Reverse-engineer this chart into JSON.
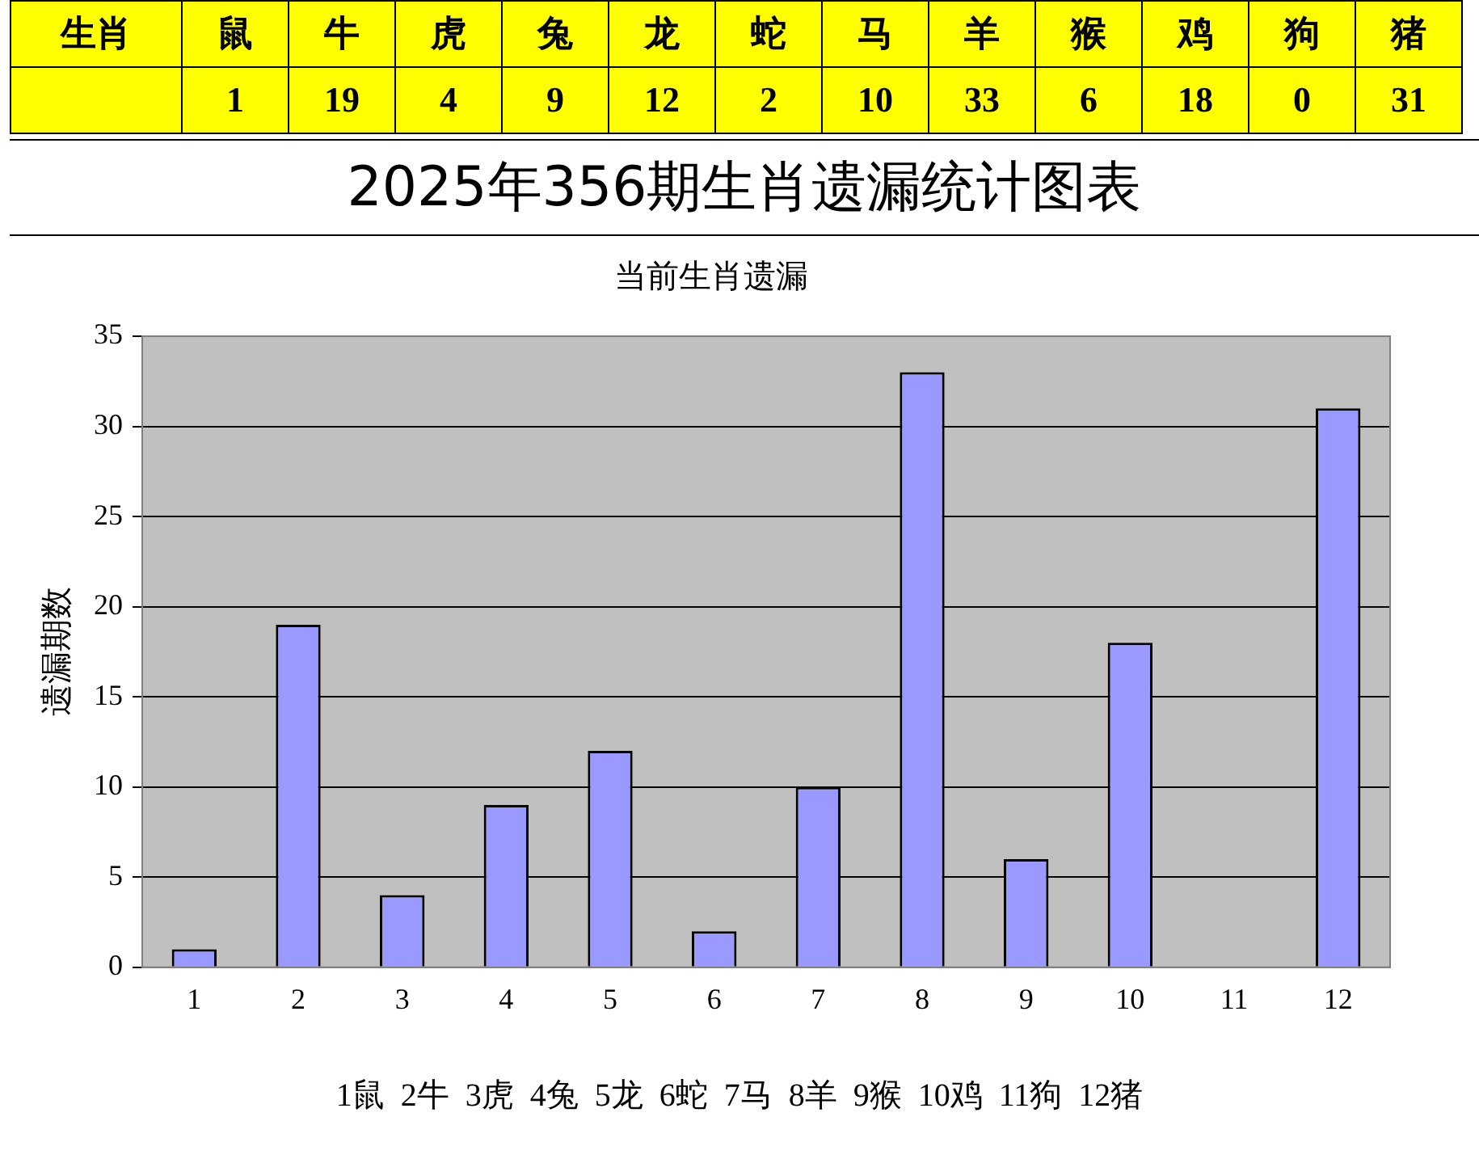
{
  "chart_data": [
    {
      "type": "other",
      "xlabel": "生肖",
      "categories": [
        "鼠",
        "牛",
        "虎",
        "兔",
        "龙",
        "蛇",
        "马",
        "羊",
        "猴",
        "鸡",
        "狗",
        "猪"
      ],
      "values": [
        1,
        19,
        4,
        9,
        12,
        2,
        10,
        33,
        6,
        18,
        0,
        31
      ],
      "data_labels": true
    },
    {
      "type": "bar",
      "title": "2025年356期生肖遗漏统计图表",
      "subtitle": "当前生肖遗漏",
      "ylabel": "遗漏期数",
      "categories": [
        "1",
        "2",
        "3",
        "4",
        "5",
        "6",
        "7",
        "8",
        "9",
        "10",
        "11",
        "12"
      ],
      "values": [
        1,
        19,
        4,
        9,
        12,
        2,
        10,
        33,
        6,
        18,
        0,
        31
      ],
      "color": "#9999ff",
      "ylim": [
        0,
        35
      ],
      "yticks": [
        0,
        5,
        10,
        15,
        20,
        25,
        30,
        35
      ],
      "grid": "y",
      "annotations": [
        "1鼠  2牛  3虎  4兔  5龙  6蛇  7马  8羊  9猴  10鸡  11狗  12猪"
      ]
    }
  ]
}
